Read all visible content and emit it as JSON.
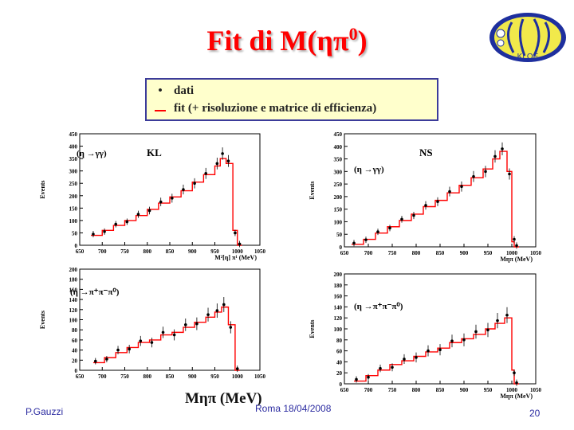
{
  "slide": {
    "title_main": "Fit di M(ηπ",
    "title_sup": "0",
    "title_close": ")",
    "legend": {
      "bullet_symbol": "•",
      "bullet_text": "dati",
      "line_text": "fit (+ risoluzione e matrice di efficienza)"
    },
    "bottom_xlabel": "Mηπ  (MeV)",
    "footer_left": "P.Gauzzi",
    "footer_center": "Roma 18/04/2008",
    "footer_right": "20",
    "logo_text": "KLOE"
  },
  "chart_data": [
    {
      "type": "histogram",
      "label_sample": "KL",
      "label_decay": "(η →γγ)",
      "ylabel": "Events",
      "xlabel": "M²[η] π¹ (MeV)",
      "xlim": [
        650,
        1050
      ],
      "ylim": [
        0,
        450
      ],
      "xticks": [
        650,
        700,
        750,
        800,
        850,
        900,
        950,
        1000,
        1050
      ],
      "yticks": [
        0,
        50,
        100,
        150,
        200,
        250,
        300,
        350,
        400,
        450
      ],
      "x": [
        675,
        700,
        725,
        750,
        775,
        800,
        825,
        850,
        875,
        900,
        925,
        950,
        962,
        975,
        990,
        1000
      ],
      "fit": [
        40,
        60,
        80,
        100,
        120,
        145,
        170,
        195,
        220,
        255,
        285,
        320,
        350,
        330,
        60,
        0
      ],
      "data": [
        45,
        55,
        85,
        95,
        125,
        140,
        175,
        190,
        225,
        250,
        290,
        330,
        370,
        340,
        50,
        5
      ],
      "color": "#ff0000"
    },
    {
      "type": "histogram",
      "label_sample": "NS",
      "label_decay": "(η →γγ)",
      "ylabel": "Events",
      "xlabel": "Mηπ (MeV)",
      "xlim": [
        650,
        1050
      ],
      "ylim": [
        0,
        450
      ],
      "xticks": [
        650,
        700,
        750,
        800,
        850,
        900,
        950,
        1000,
        1050
      ],
      "yticks": [
        0,
        50,
        100,
        150,
        200,
        250,
        300,
        350,
        400,
        450
      ],
      "x": [
        665,
        690,
        715,
        740,
        765,
        790,
        815,
        840,
        865,
        890,
        915,
        940,
        960,
        975,
        990,
        1000,
        1005
      ],
      "fit": [
        10,
        30,
        55,
        80,
        105,
        130,
        160,
        185,
        215,
        245,
        275,
        310,
        350,
        380,
        300,
        20,
        0
      ],
      "data": [
        15,
        28,
        60,
        75,
        110,
        125,
        165,
        180,
        220,
        240,
        280,
        300,
        360,
        390,
        290,
        30,
        5
      ],
      "color": "#ff0000"
    },
    {
      "type": "histogram",
      "label_sample": "",
      "label_decay": "(η →π⁺π⁻π⁰)",
      "ylabel": "Events",
      "xlabel": "",
      "xlim": [
        650,
        1050
      ],
      "ylim": [
        0,
        200
      ],
      "xticks": [
        650,
        700,
        750,
        800,
        850,
        900,
        950,
        1000,
        1050
      ],
      "yticks": [
        0,
        20,
        40,
        60,
        80,
        100,
        120,
        140,
        160,
        180,
        200
      ],
      "x": [
        680,
        705,
        730,
        755,
        780,
        805,
        830,
        855,
        880,
        905,
        930,
        950,
        965,
        980,
        995
      ],
      "fit": [
        15,
        25,
        35,
        45,
        55,
        60,
        70,
        75,
        85,
        95,
        105,
        115,
        125,
        90,
        0
      ],
      "data": [
        18,
        22,
        40,
        42,
        58,
        55,
        75,
        70,
        90,
        92,
        110,
        118,
        130,
        85,
        3
      ],
      "color": "#ff0000"
    },
    {
      "type": "histogram",
      "label_sample": "",
      "label_decay": "(η →π⁺π⁻π⁰)",
      "ylabel": "Events",
      "xlabel": "Mηπ (MeV)",
      "xlim": [
        650,
        1050
      ],
      "ylim": [
        0,
        200
      ],
      "xticks": [
        650,
        700,
        750,
        800,
        850,
        900,
        950,
        1000,
        1050
      ],
      "yticks": [
        0,
        20,
        40,
        60,
        80,
        100,
        120,
        140,
        160,
        180,
        200
      ],
      "x": [
        670,
        695,
        720,
        745,
        770,
        795,
        820,
        845,
        870,
        895,
        920,
        945,
        965,
        985,
        1000,
        1005
      ],
      "fit": [
        5,
        15,
        25,
        35,
        42,
        50,
        58,
        65,
        75,
        82,
        90,
        100,
        110,
        120,
        25,
        0
      ],
      "data": [
        8,
        12,
        28,
        30,
        45,
        48,
        60,
        62,
        78,
        80,
        95,
        98,
        115,
        125,
        20,
        2
      ],
      "color": "#ff0000"
    }
  ]
}
